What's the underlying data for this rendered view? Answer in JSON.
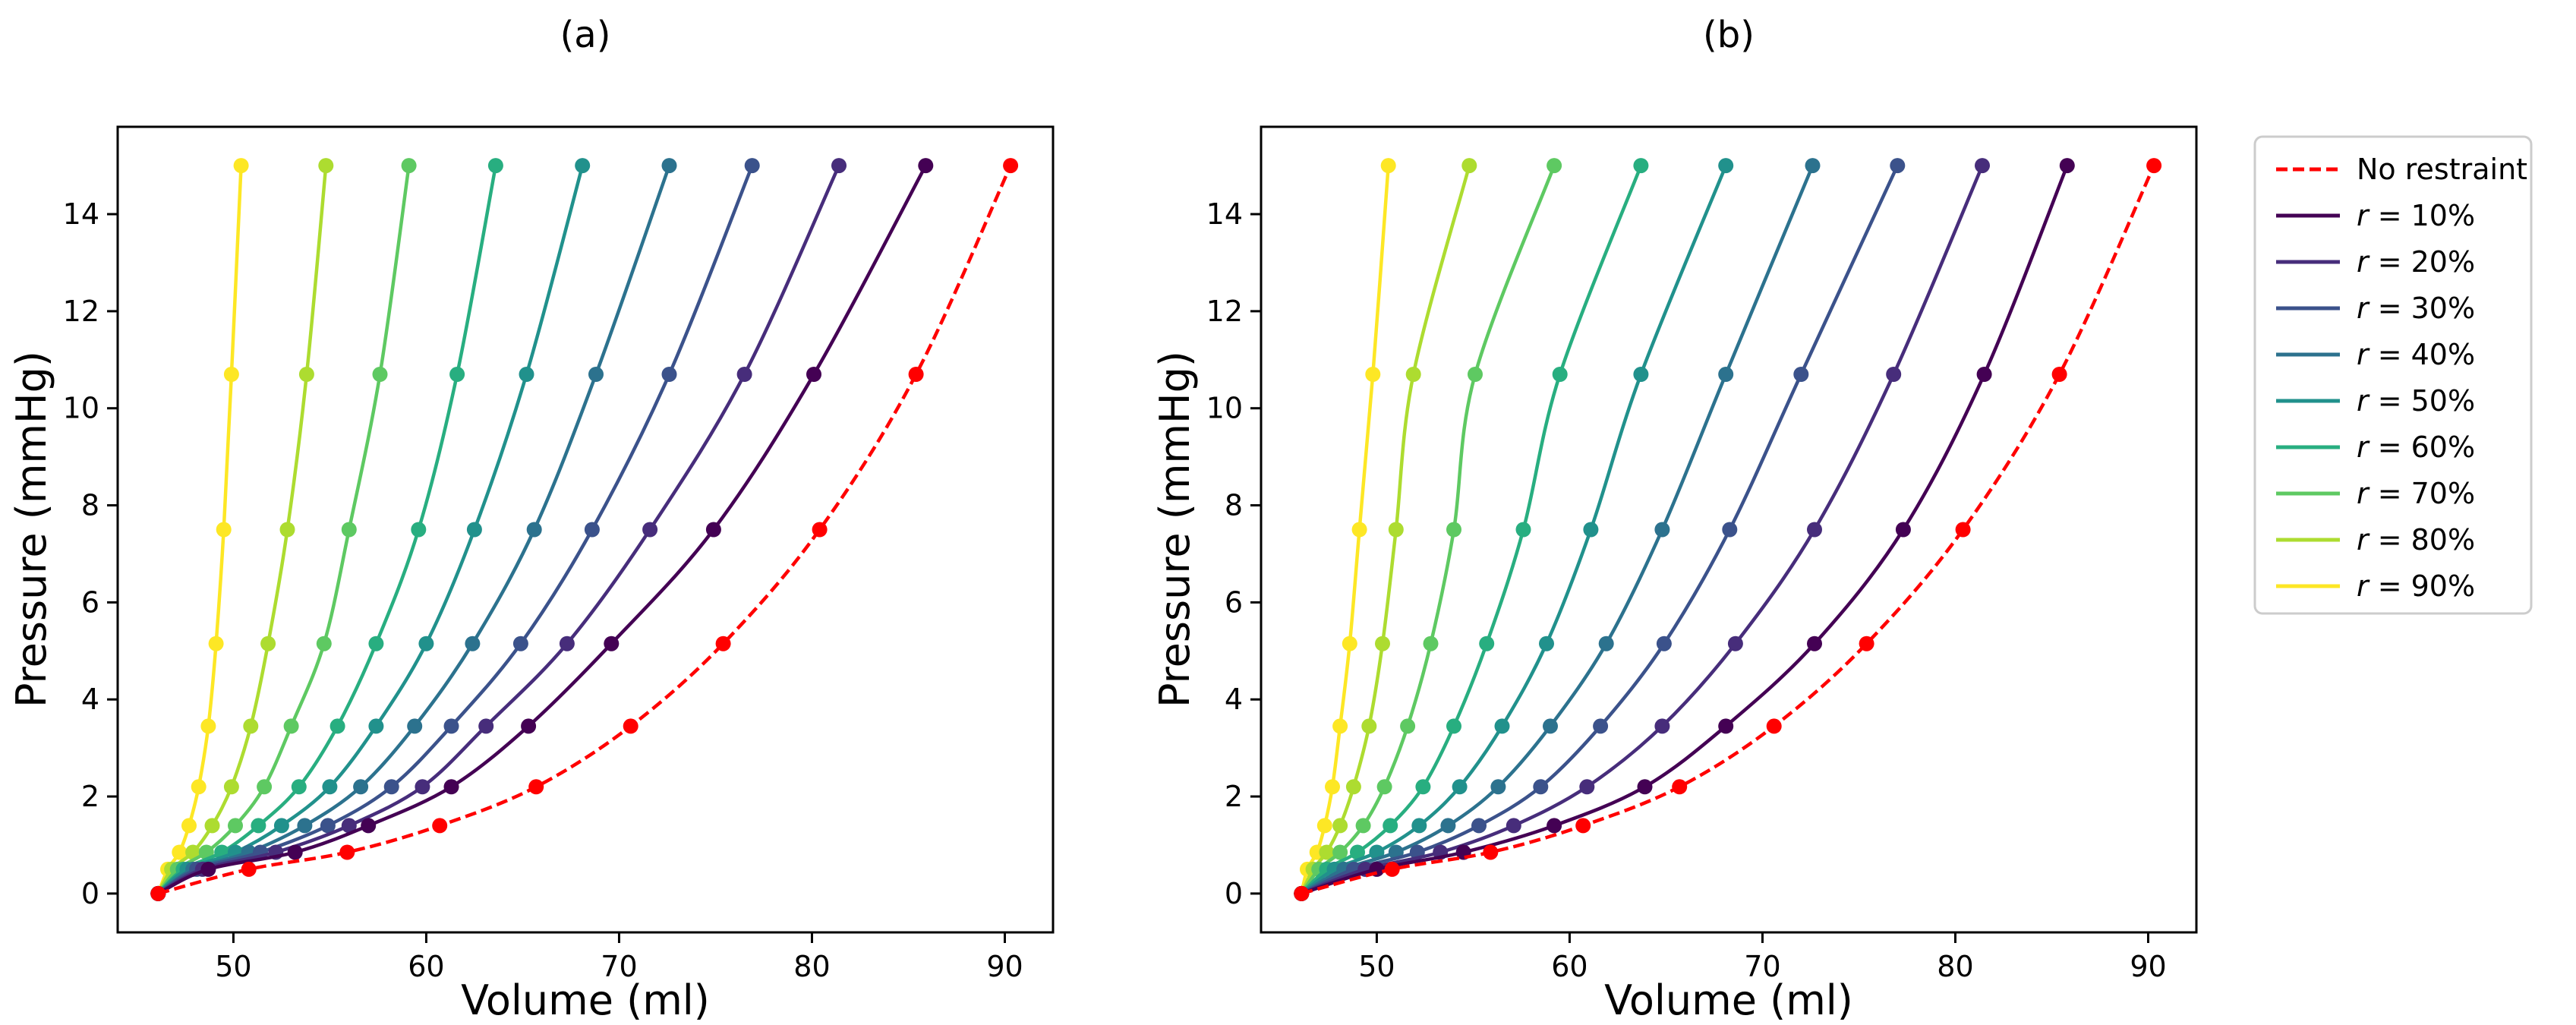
{
  "chart_data": [
    {
      "type": "line",
      "panel_label": "(a)",
      "xlabel": "Volume (ml)",
      "ylabel": "Pressure (mmHg)",
      "xlim": [
        44,
        92.5
      ],
      "ylim": [
        -0.8,
        15.8
      ],
      "xticks": [
        50,
        60,
        70,
        80,
        90
      ],
      "yticks": [
        0,
        2,
        4,
        6,
        8,
        10,
        12,
        14
      ],
      "pressures": [
        0,
        0.5,
        0.85,
        1.4,
        2.2,
        3.45,
        5.15,
        7.5,
        10.7,
        15
      ],
      "series": [
        {
          "name": "No restraint",
          "color": "#ff0000",
          "dashed": true,
          "volumes": [
            46.1,
            50.8,
            55.9,
            60.7,
            65.7,
            70.6,
            75.4,
            80.4,
            85.4,
            90.3
          ]
        },
        {
          "name": "r = 10%",
          "color": "#440154",
          "dashed": false,
          "volumes": [
            46.1,
            48.7,
            53.2,
            57.0,
            61.3,
            65.3,
            69.6,
            74.9,
            80.1,
            85.9
          ]
        },
        {
          "name": "r = 20%",
          "color": "#472d7b",
          "dashed": false,
          "volumes": [
            46.1,
            48.4,
            52.2,
            56.0,
            59.8,
            63.1,
            67.3,
            71.6,
            76.5,
            81.4
          ]
        },
        {
          "name": "r = 30%",
          "color": "#3b528b",
          "dashed": false,
          "volumes": [
            46.1,
            48.1,
            51.4,
            54.9,
            58.2,
            61.3,
            64.9,
            68.6,
            72.6,
            76.9
          ]
        },
        {
          "name": "r = 40%",
          "color": "#2c728e",
          "dashed": false,
          "volumes": [
            46.1,
            47.9,
            50.8,
            53.7,
            56.6,
            59.4,
            62.4,
            65.6,
            68.8,
            72.6
          ]
        },
        {
          "name": "r = 50%",
          "color": "#21918c",
          "dashed": false,
          "volumes": [
            46.1,
            47.6,
            50.1,
            52.5,
            55.0,
            57.4,
            60.0,
            62.5,
            65.2,
            68.1
          ]
        },
        {
          "name": "r = 60%",
          "color": "#28ae80",
          "dashed": false,
          "volumes": [
            46.1,
            47.4,
            49.4,
            51.3,
            53.4,
            55.4,
            57.4,
            59.6,
            61.6,
            63.6
          ]
        },
        {
          "name": "r = 70%",
          "color": "#5ec962",
          "dashed": false,
          "volumes": [
            46.1,
            47.1,
            48.6,
            50.1,
            51.6,
            53.0,
            54.7,
            56.0,
            57.6,
            59.1
          ]
        },
        {
          "name": "r = 80%",
          "color": "#addc30",
          "dashed": false,
          "volumes": [
            46.1,
            46.8,
            47.9,
            48.9,
            49.9,
            50.9,
            51.8,
            52.8,
            53.8,
            54.8
          ]
        },
        {
          "name": "r = 90%",
          "color": "#fde725",
          "dashed": false,
          "volumes": [
            46.1,
            46.6,
            47.2,
            47.7,
            48.2,
            48.7,
            49.1,
            49.5,
            49.9,
            50.4
          ]
        }
      ]
    },
    {
      "type": "line",
      "panel_label": "(b)",
      "xlabel": "Volume (ml)",
      "ylabel": "Pressure (mmHg)",
      "xlim": [
        44,
        92.5
      ],
      "ylim": [
        -0.8,
        15.8
      ],
      "xticks": [
        50,
        60,
        70,
        80,
        90
      ],
      "yticks": [
        0,
        2,
        4,
        6,
        8,
        10,
        12,
        14
      ],
      "pressures": [
        0,
        0.5,
        0.85,
        1.4,
        2.2,
        3.45,
        5.15,
        7.5,
        10.7,
        15
      ],
      "series": [
        {
          "name": "No restraint",
          "color": "#ff0000",
          "dashed": true,
          "volumes": [
            46.1,
            50.8,
            55.9,
            60.7,
            65.7,
            70.6,
            75.4,
            80.4,
            85.4,
            90.3
          ]
        },
        {
          "name": "r = 10%",
          "color": "#440154",
          "dashed": false,
          "volumes": [
            46.1,
            50.0,
            54.5,
            59.2,
            63.9,
            68.1,
            72.7,
            77.3,
            81.5,
            85.8
          ]
        },
        {
          "name": "r = 20%",
          "color": "#472d7b",
          "dashed": false,
          "volumes": [
            46.1,
            49.4,
            53.3,
            57.1,
            60.9,
            64.8,
            68.6,
            72.7,
            76.8,
            81.4
          ]
        },
        {
          "name": "r = 30%",
          "color": "#3b528b",
          "dashed": false,
          "volumes": [
            46.1,
            48.8,
            52.1,
            55.3,
            58.5,
            61.6,
            64.9,
            68.3,
            72.0,
            77.0
          ]
        },
        {
          "name": "r = 40%",
          "color": "#2c728e",
          "dashed": false,
          "volumes": [
            46.1,
            48.3,
            51.0,
            53.7,
            56.3,
            59.0,
            61.9,
            64.8,
            68.1,
            72.6
          ]
        },
        {
          "name": "r = 50%",
          "color": "#21918c",
          "dashed": false,
          "volumes": [
            46.1,
            47.8,
            50.0,
            52.2,
            54.3,
            56.5,
            58.8,
            61.1,
            63.7,
            68.1
          ]
        },
        {
          "name": "r = 60%",
          "color": "#28ae80",
          "dashed": false,
          "volumes": [
            46.1,
            47.4,
            49.0,
            50.7,
            52.4,
            54.0,
            55.7,
            57.6,
            59.5,
            63.7
          ]
        },
        {
          "name": "r = 70%",
          "color": "#5ec962",
          "dashed": false,
          "volumes": [
            46.1,
            47.0,
            48.1,
            49.3,
            50.4,
            51.6,
            52.8,
            54.0,
            55.1,
            59.2
          ]
        },
        {
          "name": "r = 80%",
          "color": "#addc30",
          "dashed": false,
          "volumes": [
            46.1,
            46.7,
            47.4,
            48.1,
            48.8,
            49.6,
            50.3,
            51.0,
            51.9,
            54.8
          ]
        },
        {
          "name": "r = 90%",
          "color": "#fde725",
          "dashed": false,
          "volumes": [
            46.1,
            46.4,
            46.9,
            47.3,
            47.7,
            48.1,
            48.6,
            49.1,
            49.8,
            50.6
          ]
        }
      ]
    }
  ],
  "legend": {
    "items": [
      {
        "prefix": "",
        "text": "No restraint",
        "color": "#ff0000",
        "dashed": true
      },
      {
        "prefix": "r",
        "text": " = 10%",
        "color": "#440154",
        "dashed": false
      },
      {
        "prefix": "r",
        "text": " = 20%",
        "color": "#472d7b",
        "dashed": false
      },
      {
        "prefix": "r",
        "text": " = 30%",
        "color": "#3b528b",
        "dashed": false
      },
      {
        "prefix": "r",
        "text": " = 40%",
        "color": "#2c728e",
        "dashed": false
      },
      {
        "prefix": "r",
        "text": " = 50%",
        "color": "#21918c",
        "dashed": false
      },
      {
        "prefix": "r",
        "text": " = 60%",
        "color": "#28ae80",
        "dashed": false
      },
      {
        "prefix": "r",
        "text": " = 70%",
        "color": "#5ec962",
        "dashed": false
      },
      {
        "prefix": "r",
        "text": " = 80%",
        "color": "#addc30",
        "dashed": false
      },
      {
        "prefix": "r",
        "text": " = 90%",
        "color": "#fde725",
        "dashed": false
      }
    ]
  }
}
